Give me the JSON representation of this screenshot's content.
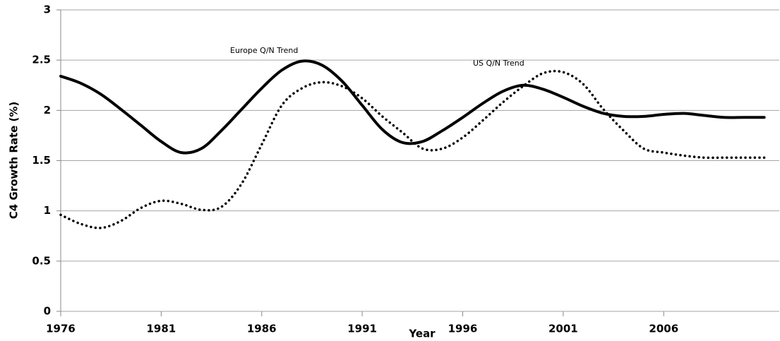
{
  "chart_data": {
    "type": "line",
    "x_label": "Year",
    "y_label": "C4 Growth Rate (%)",
    "x": [
      1976,
      1977,
      1978,
      1979,
      1980,
      1981,
      1982,
      1983,
      1984,
      1985,
      1986,
      1987,
      1988,
      1989,
      1990,
      1991,
      1992,
      1993,
      1994,
      1995,
      1996,
      1997,
      1998,
      1999,
      2000,
      2001,
      2002,
      2003,
      2004,
      2005,
      2006,
      2007,
      2008,
      2009,
      2010,
      2011
    ],
    "series": [
      {
        "name": "Europe Q/N Trend",
        "color": "#000000",
        "dash": "solid",
        "values": [
          2.34,
          2.27,
          2.16,
          2.01,
          1.85,
          1.69,
          1.58,
          1.62,
          1.8,
          2.01,
          2.22,
          2.4,
          2.49,
          2.45,
          2.29,
          2.05,
          1.81,
          1.68,
          1.69,
          1.8,
          1.93,
          2.07,
          2.19,
          2.25,
          2.21,
          2.13,
          2.04,
          1.97,
          1.94,
          1.94,
          1.96,
          1.97,
          1.95,
          1.93,
          1.93,
          1.93
        ]
      },
      {
        "name": "US Q/N Trend",
        "color": "#000000",
        "dash": "dotted",
        "values": [
          0.96,
          0.87,
          0.83,
          0.9,
          1.03,
          1.1,
          1.07,
          1.01,
          1.04,
          1.27,
          1.66,
          2.05,
          2.22,
          2.28,
          2.24,
          2.12,
          1.94,
          1.78,
          1.62,
          1.62,
          1.73,
          1.9,
          2.08,
          2.24,
          2.37,
          2.38,
          2.26,
          2.01,
          1.8,
          1.62,
          1.58,
          1.55,
          1.53,
          1.53,
          1.53,
          1.53
        ]
      }
    ],
    "xlim": [
      1976,
      2011.75
    ],
    "xticks": [
      1976,
      1981,
      1986,
      1991,
      1996,
      2001,
      2006
    ],
    "ylim": [
      0,
      3
    ],
    "yticks": [
      0,
      0.5,
      1,
      1.5,
      2,
      2.5,
      3
    ],
    "grid": true
  }
}
